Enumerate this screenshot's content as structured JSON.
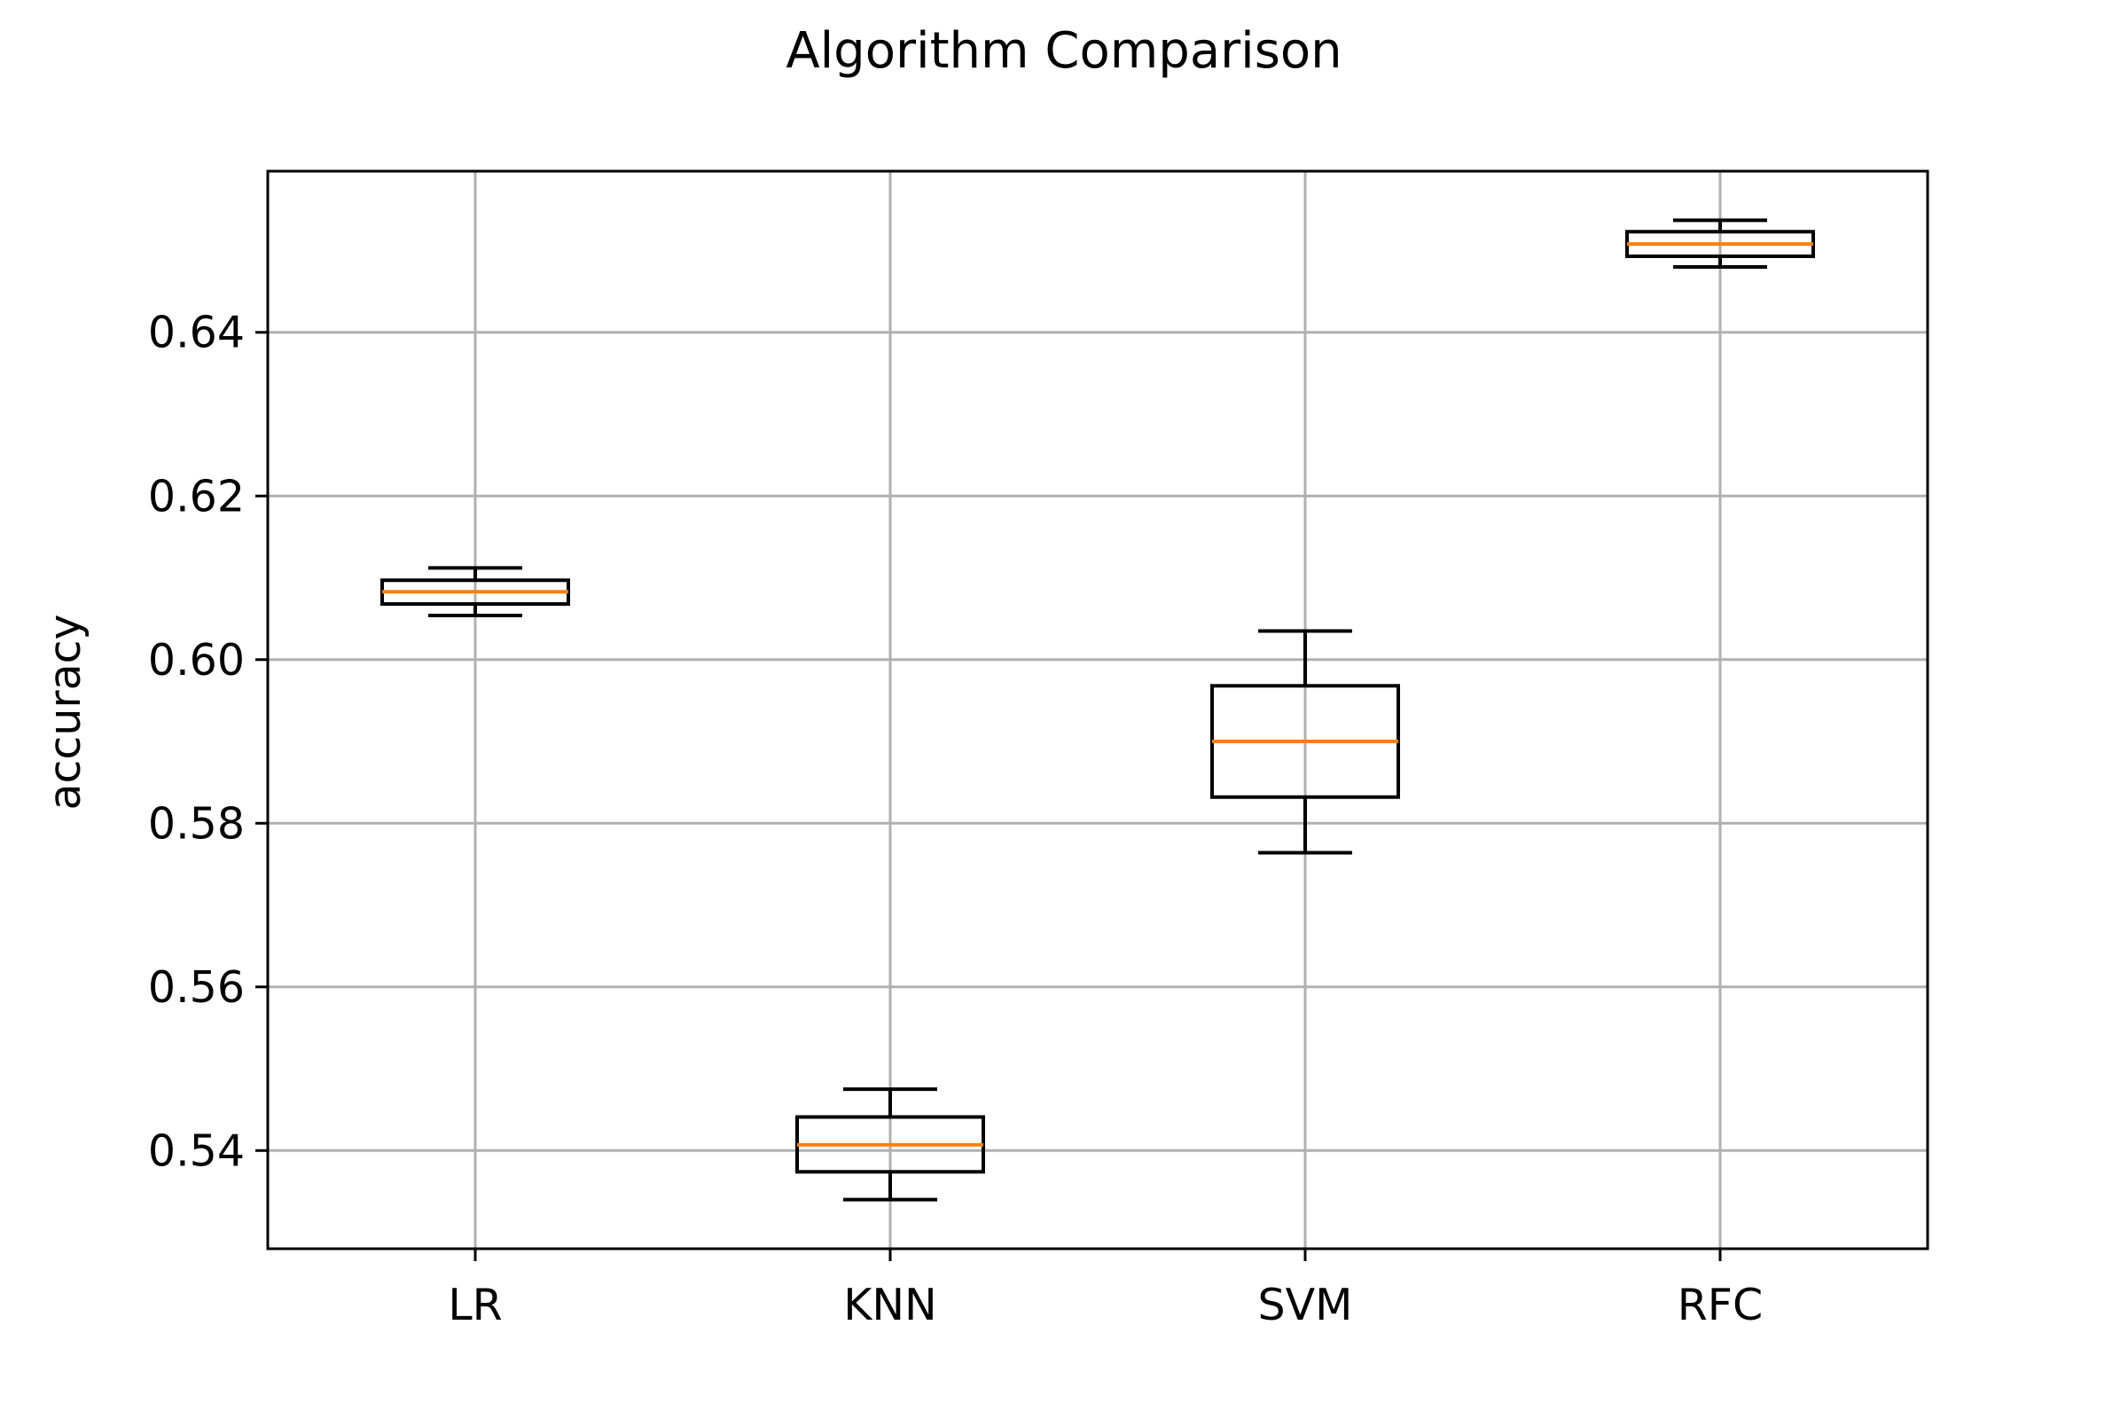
{
  "chart_data": {
    "type": "box",
    "title": "Algorithm Comparison",
    "xlabel": "",
    "ylabel": "accuracy",
    "categories": [
      "LR",
      "KNN",
      "SVM",
      "RFC"
    ],
    "boxes": [
      {
        "category": "LR",
        "whisker_low": 0.6054,
        "q1": 0.6068,
        "median": 0.6083,
        "q3": 0.6097,
        "whisker_high": 0.6112
      },
      {
        "category": "KNN",
        "whisker_low": 0.534,
        "q1": 0.5374,
        "median": 0.5407,
        "q3": 0.5441,
        "whisker_high": 0.5475
      },
      {
        "category": "SVM",
        "whisker_low": 0.5764,
        "q1": 0.5832,
        "median": 0.59,
        "q3": 0.5968,
        "whisker_high": 0.6035
      },
      {
        "category": "RFC",
        "whisker_low": 0.648,
        "q1": 0.6493,
        "median": 0.6508,
        "q3": 0.6523,
        "whisker_high": 0.6537
      }
    ],
    "yticks": [
      "0.54",
      "0.56",
      "0.58",
      "0.60",
      "0.62",
      "0.64"
    ],
    "ylim": [
      0.528,
      0.6597
    ],
    "grid": true,
    "colors": {
      "box": "#000000",
      "median": "#ff7f0e",
      "grid": "#b0b0b0",
      "axes": "#000000"
    }
  }
}
